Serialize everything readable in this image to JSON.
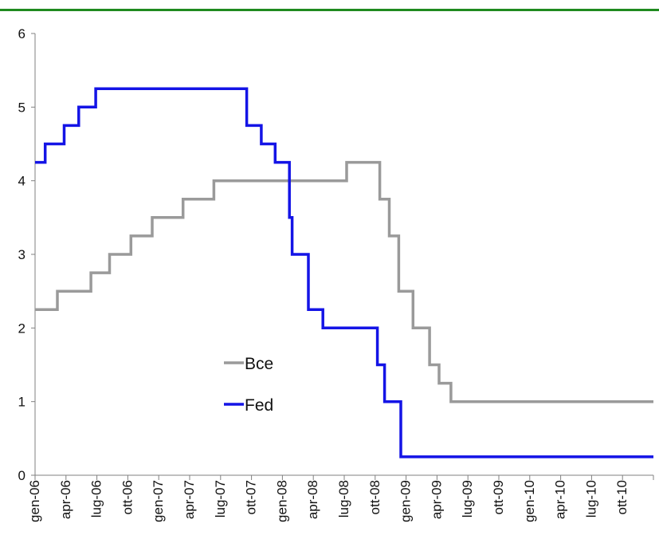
{
  "chart_data": {
    "type": "line",
    "title": "",
    "xlabel": "",
    "ylabel": "",
    "ylim": [
      0,
      6
    ],
    "yticks": [
      0,
      1,
      2,
      3,
      4,
      5,
      6
    ],
    "x_tick_labels": [
      "gen-06",
      "apr-06",
      "lug-06",
      "ott-06",
      "gen-07",
      "apr-07",
      "lug-07",
      "ott-07",
      "gen-08",
      "apr-08",
      "lug-08",
      "ott-08",
      "gen-09",
      "apr-09",
      "lug-09",
      "ott-09",
      "gen-10",
      "apr-10",
      "lug-10",
      "ott-10"
    ],
    "x_range": [
      "2006-01-01",
      "2011-01-01"
    ],
    "line_style": "step",
    "grid": false,
    "legend_position": "center-left",
    "series": [
      {
        "name": "Bce",
        "color": "#9a9a9a",
        "points": [
          [
            "2006-01-01",
            2.25
          ],
          [
            "2006-03-08",
            2.5
          ],
          [
            "2006-06-15",
            2.75
          ],
          [
            "2006-08-09",
            3.0
          ],
          [
            "2006-10-11",
            3.25
          ],
          [
            "2006-12-13",
            3.5
          ],
          [
            "2007-03-14",
            3.75
          ],
          [
            "2007-06-13",
            4.0
          ],
          [
            "2008-07-09",
            4.25
          ],
          [
            "2008-10-15",
            3.75
          ],
          [
            "2008-11-12",
            3.25
          ],
          [
            "2008-12-10",
            2.5
          ],
          [
            "2009-01-21",
            2.0
          ],
          [
            "2009-03-11",
            1.5
          ],
          [
            "2009-04-08",
            1.25
          ],
          [
            "2009-05-13",
            1.0
          ],
          [
            "2011-01-01",
            1.0
          ]
        ]
      },
      {
        "name": "Fed",
        "color": "#1414e6",
        "points": [
          [
            "2006-01-01",
            4.25
          ],
          [
            "2006-01-31",
            4.5
          ],
          [
            "2006-03-28",
            4.75
          ],
          [
            "2006-05-10",
            5.0
          ],
          [
            "2006-06-29",
            5.25
          ],
          [
            "2007-09-18",
            4.75
          ],
          [
            "2007-10-31",
            4.5
          ],
          [
            "2007-12-11",
            4.25
          ],
          [
            "2008-01-22",
            3.5
          ],
          [
            "2008-01-30",
            3.0
          ],
          [
            "2008-03-18",
            2.25
          ],
          [
            "2008-04-30",
            2.0
          ],
          [
            "2008-10-08",
            1.5
          ],
          [
            "2008-10-29",
            1.0
          ],
          [
            "2008-12-16",
            0.25
          ],
          [
            "2011-01-01",
            0.25
          ]
        ]
      }
    ]
  }
}
